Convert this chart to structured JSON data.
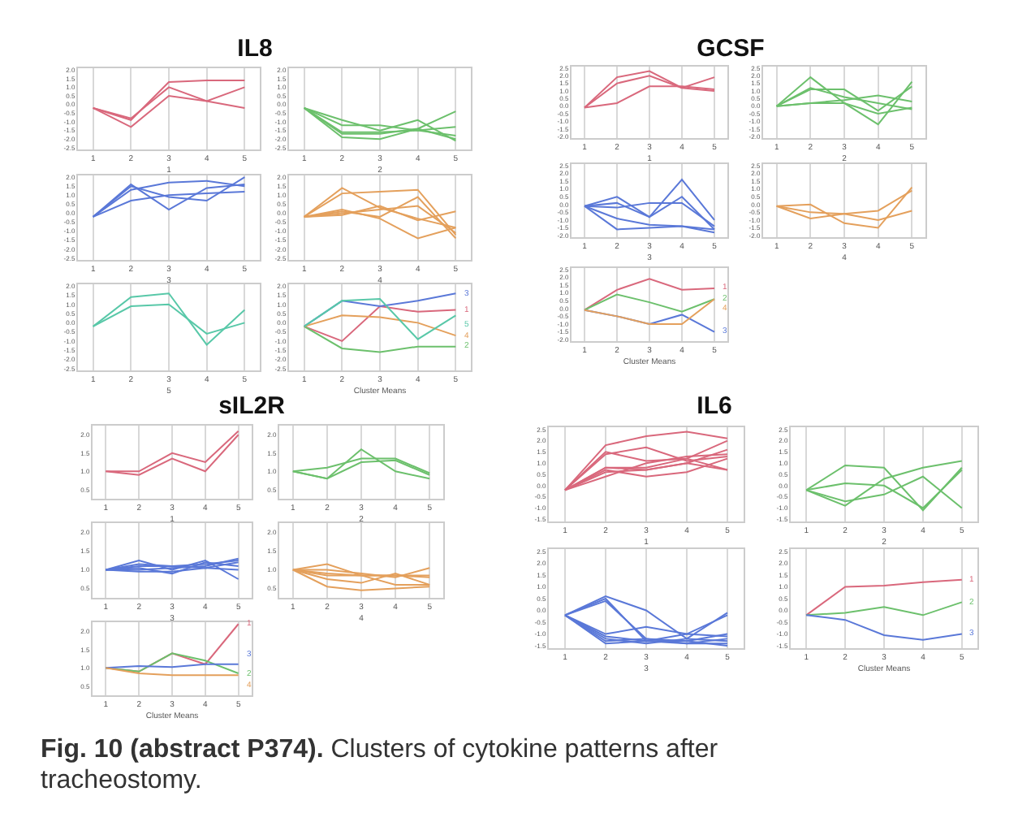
{
  "chart_data": [
    {
      "type": "line",
      "title": "IL8",
      "xlabel": "1",
      "categories": [
        "1",
        "2",
        "3",
        "4",
        "5"
      ],
      "ylim": [
        -2.6,
        2.1
      ],
      "yticks": [
        {
          "value": 2,
          "label": "2.0"
        },
        1.5,
        {
          "value": 1,
          "label": "1.0"
        },
        0.5,
        {
          "value": 0,
          "label": "0.0"
        },
        -0.5,
        {
          "value": -1,
          "label": "-1.0"
        },
        -1.5,
        {
          "value": -2,
          "label": "-2.0"
        },
        -2.5
      ],
      "grid": "x",
      "legend": false,
      "series": [
        {
          "color": "#d9687c",
          "values": [
            -0.2,
            -0.9,
            1.3,
            1.4,
            1.4
          ]
        },
        {
          "color": "#d9687c",
          "values": [
            -0.2,
            -0.8,
            1.0,
            0.2,
            1.0
          ]
        },
        {
          "color": "#d9687c",
          "values": [
            -0.2,
            -1.3,
            0.5,
            0.2,
            -0.2
          ]
        }
      ]
    },
    {
      "type": "line",
      "xlabel": "2",
      "categories": [
        "1",
        "2",
        "3",
        "4",
        "5"
      ],
      "ylim": [
        -2.6,
        2.1
      ],
      "yticks": [
        {
          "value": 2,
          "label": "2.0"
        },
        1.5,
        {
          "value": 1,
          "label": "1.0"
        },
        0.5,
        {
          "value": 0,
          "label": "0.0"
        },
        -0.5,
        {
          "value": -1,
          "label": "-1.0"
        },
        -1.5,
        {
          "value": -2,
          "label": "-2.0"
        },
        -2.5
      ],
      "grid": "x",
      "legend": false,
      "series": [
        {
          "color": "#6cc06c",
          "values": [
            -0.2,
            -1.2,
            -1.2,
            -1.5,
            -1.3
          ]
        },
        {
          "color": "#6cc06c",
          "values": [
            -0.2,
            -1.6,
            -1.6,
            -1.5,
            -1.8
          ]
        },
        {
          "color": "#6cc06c",
          "values": [
            -0.2,
            -1.9,
            -2.0,
            -1.4,
            -2.0
          ]
        },
        {
          "color": "#6cc06c",
          "values": [
            -0.2,
            -0.9,
            -1.5,
            -0.9,
            -2.1
          ]
        },
        {
          "color": "#6cc06c",
          "values": [
            -0.2,
            -1.7,
            -1.7,
            -1.4,
            -0.4
          ]
        }
      ]
    },
    {
      "type": "line",
      "xlabel": "3",
      "categories": [
        "1",
        "2",
        "3",
        "4",
        "5"
      ],
      "ylim": [
        -2.6,
        2.1
      ],
      "yticks": [
        {
          "value": 2,
          "label": "2.0"
        },
        1.5,
        {
          "value": 1,
          "label": "1.0"
        },
        0.5,
        {
          "value": 0,
          "label": "0.0"
        },
        -0.5,
        {
          "value": -1,
          "label": "-1.0"
        },
        -1.5,
        {
          "value": -2,
          "label": "-2.0"
        },
        -2.5
      ],
      "grid": "x",
      "legend": false,
      "series": [
        {
          "color": "#5a78d8",
          "values": [
            -0.2,
            1.6,
            0.2,
            1.4,
            1.6
          ]
        },
        {
          "color": "#5a78d8",
          "values": [
            -0.2,
            1.3,
            1.7,
            1.8,
            1.5
          ]
        },
        {
          "color": "#5a78d8",
          "values": [
            -0.2,
            1.5,
            0.9,
            0.7,
            2.0
          ]
        },
        {
          "color": "#5a78d8",
          "values": [
            -0.2,
            0.7,
            1.0,
            1.1,
            1.2
          ]
        }
      ]
    },
    {
      "type": "line",
      "xlabel": "4",
      "categories": [
        "1",
        "2",
        "3",
        "4",
        "5"
      ],
      "ylim": [
        -2.6,
        2.1
      ],
      "yticks": [
        {
          "value": 2,
          "label": "2.0"
        },
        1.5,
        {
          "value": 1,
          "label": "1.0"
        },
        0.5,
        {
          "value": 0,
          "label": "0.0"
        },
        -0.5,
        {
          "value": -1,
          "label": "-1.0"
        },
        -1.5,
        {
          "value": -2,
          "label": "-2.0"
        },
        -2.5
      ],
      "grid": "x",
      "legend": false,
      "series": [
        {
          "color": "#e4a05c",
          "values": [
            -0.2,
            1.4,
            0.3,
            -0.3,
            -0.8
          ]
        },
        {
          "color": "#e4a05c",
          "values": [
            -0.2,
            1.1,
            1.2,
            1.3,
            -1.2
          ]
        },
        {
          "color": "#e4a05c",
          "values": [
            -0.2,
            0.1,
            -0.2,
            0.9,
            -1.4
          ]
        },
        {
          "color": "#e4a05c",
          "values": [
            -0.2,
            0.2,
            -0.3,
            -1.4,
            -0.8
          ]
        },
        {
          "color": "#e4a05c",
          "values": [
            -0.2,
            -0.1,
            0.4,
            -0.4,
            0.1
          ]
        },
        {
          "color": "#e4a05c",
          "values": [
            -0.2,
            0.0,
            0.2,
            0.4,
            -1.1
          ]
        }
      ]
    },
    {
      "type": "line",
      "xlabel": "5",
      "categories": [
        "1",
        "2",
        "3",
        "4",
        "5"
      ],
      "ylim": [
        -2.6,
        2.1
      ],
      "yticks": [
        {
          "value": 2,
          "label": "2.0"
        },
        1.5,
        {
          "value": 1,
          "label": "1.0"
        },
        0.5,
        {
          "value": 0,
          "label": "0.0"
        },
        -0.5,
        {
          "value": -1,
          "label": "-1.0"
        },
        -1.5,
        {
          "value": -2,
          "label": "-2.0"
        },
        -2.5
      ],
      "grid": "x",
      "legend": false,
      "series": [
        {
          "color": "#58c8a8",
          "values": [
            -0.2,
            1.4,
            1.6,
            -1.2,
            0.7
          ]
        },
        {
          "color": "#58c8a8",
          "values": [
            -0.2,
            0.9,
            1.0,
            -0.6,
            0.0
          ]
        }
      ]
    },
    {
      "type": "line",
      "xlabel": "Cluster Means",
      "categories": [
        "1",
        "2",
        "3",
        "4",
        "5"
      ],
      "ylim": [
        -2.6,
        2.1
      ],
      "yticks": [
        {
          "value": 2,
          "label": "2.0"
        },
        1.5,
        {
          "value": 1,
          "label": "1.0"
        },
        0.5,
        {
          "value": 0,
          "label": "0.0"
        },
        -0.5,
        {
          "value": -1,
          "label": "-1.0"
        },
        -1.5,
        {
          "value": -2,
          "label": "-2.0"
        },
        -2.5
      ],
      "grid": "x",
      "legend": false,
      "series": [
        {
          "name": "1",
          "color": "#d9687c",
          "values": [
            -0.2,
            -1.0,
            0.9,
            0.6,
            0.7
          ]
        },
        {
          "name": "2",
          "color": "#6cc06c",
          "values": [
            -0.2,
            -1.4,
            -1.6,
            -1.3,
            -1.3
          ]
        },
        {
          "name": "3",
          "color": "#5a78d8",
          "values": [
            -0.2,
            1.2,
            0.9,
            1.2,
            1.6
          ]
        },
        {
          "name": "4",
          "color": "#e4a05c",
          "values": [
            -0.2,
            0.4,
            0.3,
            0.0,
            -0.7
          ]
        },
        {
          "name": "5",
          "color": "#58c8a8",
          "values": [
            -0.2,
            1.2,
            1.3,
            -0.9,
            0.4
          ]
        }
      ]
    },
    {
      "type": "line",
      "title": "GCSF",
      "xlabel": "1",
      "categories": [
        "1",
        "2",
        "3",
        "4",
        "5"
      ],
      "ylim": [
        -2.1,
        2.6
      ],
      "yticks": [
        2.5,
        {
          "value": 2,
          "label": "2.0"
        },
        1.5,
        {
          "value": 1,
          "label": "1.0"
        },
        0.5,
        {
          "value": 0,
          "label": "0.0"
        },
        -0.5,
        {
          "value": -1,
          "label": "-1.0"
        },
        -1.5,
        {
          "value": -2,
          "label": "-2.0"
        }
      ],
      "grid": "x",
      "legend": false,
      "series": [
        {
          "color": "#d9687c",
          "values": [
            -0.1,
            1.9,
            2.3,
            1.2,
            1.9
          ]
        },
        {
          "color": "#d9687c",
          "values": [
            -0.1,
            1.5,
            2.0,
            1.2,
            1.0
          ]
        },
        {
          "color": "#d9687c",
          "values": [
            -0.1,
            0.2,
            1.3,
            1.3,
            1.1
          ]
        }
      ]
    },
    {
      "type": "line",
      "xlabel": "2",
      "categories": [
        "1",
        "2",
        "3",
        "4",
        "5"
      ],
      "ylim": [
        -2.1,
        2.6
      ],
      "yticks": [
        2.5,
        {
          "value": 2,
          "label": "2.0"
        },
        1.5,
        {
          "value": 1,
          "label": "1.0"
        },
        0.5,
        {
          "value": 0,
          "label": "0.0"
        },
        -0.5,
        {
          "value": -1,
          "label": "-1.0"
        },
        -1.5,
        {
          "value": -2,
          "label": "-2.0"
        }
      ],
      "grid": "x",
      "legend": false,
      "series": [
        {
          "color": "#6cc06c",
          "values": [
            0.0,
            1.9,
            0.2,
            -1.2,
            1.6
          ]
        },
        {
          "color": "#6cc06c",
          "values": [
            0.0,
            1.1,
            1.1,
            -0.3,
            1.3
          ]
        },
        {
          "color": "#6cc06c",
          "values": [
            0.0,
            0.2,
            0.4,
            0.7,
            0.3
          ]
        },
        {
          "color": "#6cc06c",
          "values": [
            0.0,
            1.2,
            0.6,
            0.2,
            -0.2
          ]
        },
        {
          "color": "#6cc06c",
          "values": [
            0.0,
            0.2,
            0.2,
            -0.5,
            -0.1
          ]
        }
      ]
    },
    {
      "type": "line",
      "xlabel": "3",
      "categories": [
        "1",
        "2",
        "3",
        "4",
        "5"
      ],
      "ylim": [
        -2.1,
        2.6
      ],
      "yticks": [
        2.5,
        {
          "value": 2,
          "label": "2.0"
        },
        1.5,
        {
          "value": 1,
          "label": "1.0"
        },
        0.5,
        {
          "value": 0,
          "label": "0.0"
        },
        -0.5,
        {
          "value": -1,
          "label": "-1.0"
        },
        -1.5,
        {
          "value": -2,
          "label": "-2.0"
        }
      ],
      "grid": "x",
      "legend": false,
      "series": [
        {
          "color": "#5a78d8",
          "values": [
            -0.1,
            0.5,
            -0.8,
            1.6,
            -1.0
          ]
        },
        {
          "color": "#5a78d8",
          "values": [
            -0.1,
            0.1,
            -0.8,
            0.5,
            -1.6
          ]
        },
        {
          "color": "#5a78d8",
          "values": [
            -0.1,
            -0.2,
            0.1,
            0.1,
            -1.4
          ]
        },
        {
          "color": "#5a78d8",
          "values": [
            -0.1,
            -0.9,
            -1.3,
            -1.4,
            -1.6
          ]
        },
        {
          "color": "#5a78d8",
          "values": [
            -0.1,
            -1.6,
            -1.5,
            -1.4,
            -1.8
          ]
        }
      ]
    },
    {
      "type": "line",
      "xlabel": "4",
      "categories": [
        "1",
        "2",
        "3",
        "4",
        "5"
      ],
      "ylim": [
        -2.1,
        2.6
      ],
      "yticks": [
        2.5,
        {
          "value": 2,
          "label": "2.0"
        },
        1.5,
        {
          "value": 1,
          "label": "1.0"
        },
        0.5,
        {
          "value": 0,
          "label": "0.0"
        },
        -0.5,
        {
          "value": -1,
          "label": "-1.0"
        },
        -1.5,
        {
          "value": -2,
          "label": "-2.0"
        }
      ],
      "grid": "x",
      "legend": false,
      "series": [
        {
          "color": "#e4a05c",
          "values": [
            -0.1,
            0.0,
            -1.2,
            -1.5,
            1.1
          ]
        },
        {
          "color": "#e4a05c",
          "values": [
            -0.1,
            -0.9,
            -0.6,
            -0.4,
            0.9
          ]
        },
        {
          "color": "#e4a05c",
          "values": [
            -0.1,
            -0.5,
            -0.6,
            -1.0,
            -0.4
          ]
        }
      ]
    },
    {
      "type": "line",
      "xlabel": "Cluster Means",
      "categories": [
        "1",
        "2",
        "3",
        "4",
        "5"
      ],
      "ylim": [
        -2.1,
        2.6
      ],
      "yticks": [
        2.5,
        {
          "value": 2,
          "label": "2.0"
        },
        1.5,
        {
          "value": 1,
          "label": "1.0"
        },
        0.5,
        {
          "value": 0,
          "label": "0.0"
        },
        -0.5,
        {
          "value": -1,
          "label": "-1.0"
        },
        -1.5,
        {
          "value": -2,
          "label": "-2.0"
        }
      ],
      "grid": "x",
      "legend": false,
      "series": [
        {
          "name": "1",
          "color": "#d9687c",
          "values": [
            -0.1,
            1.2,
            1.9,
            1.2,
            1.3
          ]
        },
        {
          "name": "2",
          "color": "#6cc06c",
          "values": [
            -0.1,
            0.9,
            0.4,
            -0.2,
            0.6
          ]
        },
        {
          "name": "3",
          "color": "#5a78d8",
          "values": [
            -0.1,
            -0.5,
            -1.0,
            -0.4,
            -1.5
          ]
        },
        {
          "name": "4",
          "color": "#e4a05c",
          "values": [
            -0.1,
            -0.5,
            -1.0,
            -1.0,
            0.6
          ]
        }
      ]
    },
    {
      "type": "line",
      "title": "sIL2R",
      "xlabel": "1",
      "categories": [
        "1",
        "2",
        "3",
        "4",
        "5"
      ],
      "ylim": [
        0.25,
        2.25
      ],
      "yticks": [
        {
          "value": 2,
          "label": "2.0"
        },
        1.5,
        {
          "value": 1,
          "label": "1.0"
        },
        0.5
      ],
      "grid": "x",
      "legend": false,
      "series": [
        {
          "color": "#d9687c",
          "values": [
            1.0,
            0.9,
            1.35,
            1.0,
            2.0
          ]
        },
        {
          "color": "#d9687c",
          "values": [
            1.0,
            1.0,
            1.5,
            1.25,
            2.1
          ]
        }
      ]
    },
    {
      "type": "line",
      "xlabel": "2",
      "categories": [
        "1",
        "2",
        "3",
        "4",
        "5"
      ],
      "ylim": [
        0.25,
        2.25
      ],
      "yticks": [
        {
          "value": 2,
          "label": "2.0"
        },
        1.5,
        {
          "value": 1,
          "label": "1.0"
        },
        0.5
      ],
      "grid": "x",
      "legend": false,
      "series": [
        {
          "color": "#6cc06c",
          "values": [
            1.0,
            0.8,
            1.6,
            1.0,
            0.8
          ]
        },
        {
          "color": "#6cc06c",
          "values": [
            1.0,
            1.1,
            1.35,
            1.35,
            0.95
          ]
        },
        {
          "color": "#6cc06c",
          "values": [
            1.0,
            0.8,
            1.25,
            1.3,
            0.9
          ]
        }
      ]
    },
    {
      "type": "line",
      "xlabel": "3",
      "categories": [
        "1",
        "2",
        "3",
        "4",
        "5"
      ],
      "ylim": [
        0.25,
        2.25
      ],
      "yticks": [
        {
          "value": 2,
          "label": "2.0"
        },
        1.5,
        {
          "value": 1,
          "label": "1.0"
        },
        0.5
      ],
      "grid": "x",
      "legend": false,
      "series": [
        {
          "color": "#5a78d8",
          "values": [
            1.0,
            1.25,
            1.0,
            1.25,
            0.75
          ]
        },
        {
          "color": "#5a78d8",
          "values": [
            1.0,
            1.15,
            1.1,
            1.15,
            1.25
          ]
        },
        {
          "color": "#5a78d8",
          "values": [
            1.0,
            1.0,
            1.05,
            1.1,
            1.3
          ]
        },
        {
          "color": "#5a78d8",
          "values": [
            1.0,
            0.95,
            0.95,
            1.05,
            1.0
          ]
        },
        {
          "color": "#5a78d8",
          "values": [
            1.0,
            1.05,
            0.9,
            1.2,
            1.1
          ]
        },
        {
          "color": "#5a78d8",
          "values": [
            1.0,
            1.1,
            1.1,
            1.05,
            1.2
          ]
        }
      ]
    },
    {
      "type": "line",
      "xlabel": "4",
      "categories": [
        "1",
        "2",
        "3",
        "4",
        "5"
      ],
      "ylim": [
        0.25,
        2.25
      ],
      "yticks": [
        {
          "value": 2,
          "label": "2.0"
        },
        1.5,
        {
          "value": 1,
          "label": "1.0"
        },
        0.5
      ],
      "grid": "x",
      "legend": false,
      "series": [
        {
          "color": "#e4a05c",
          "values": [
            1.0,
            1.15,
            0.85,
            0.6,
            0.6
          ]
        },
        {
          "color": "#e4a05c",
          "values": [
            1.0,
            1.0,
            0.9,
            0.8,
            1.05
          ]
        },
        {
          "color": "#e4a05c",
          "values": [
            1.0,
            0.9,
            0.85,
            0.85,
            0.8
          ]
        },
        {
          "color": "#e4a05c",
          "values": [
            1.0,
            0.75,
            0.65,
            0.9,
            0.6
          ]
        },
        {
          "color": "#e4a05c",
          "values": [
            1.0,
            0.55,
            0.45,
            0.5,
            0.55
          ]
        },
        {
          "color": "#e4a05c",
          "values": [
            1.0,
            0.85,
            0.85,
            0.85,
            0.85
          ]
        }
      ]
    },
    {
      "type": "line",
      "xlabel": "Cluster Means",
      "categories": [
        "1",
        "2",
        "3",
        "4",
        "5"
      ],
      "ylim": [
        0.25,
        2.25
      ],
      "yticks": [
        {
          "value": 2,
          "label": "2.0"
        },
        1.5,
        {
          "value": 1,
          "label": "1.0"
        },
        0.5
      ],
      "grid": "x",
      "legend": false,
      "series": [
        {
          "name": "1",
          "color": "#d9687c",
          "values": [
            1.0,
            0.9,
            1.4,
            1.1,
            2.2
          ]
        },
        {
          "name": "2",
          "color": "#6cc06c",
          "values": [
            1.0,
            0.9,
            1.4,
            1.2,
            0.85
          ]
        },
        {
          "name": "3",
          "color": "#5a78d8",
          "values": [
            1.0,
            1.05,
            1.02,
            1.1,
            1.1
          ]
        },
        {
          "name": "4",
          "color": "#e4a05c",
          "values": [
            1.0,
            0.85,
            0.8,
            0.8,
            0.8
          ]
        }
      ]
    },
    {
      "type": "line",
      "title": "IL6",
      "xlabel": "1",
      "categories": [
        "1",
        "2",
        "3",
        "4",
        "5"
      ],
      "ylim": [
        -1.6,
        2.6
      ],
      "yticks": [
        2.5,
        {
          "value": 2,
          "label": "2.0"
        },
        1.5,
        {
          "value": 1,
          "label": "1.0"
        },
        0.5,
        {
          "value": 0,
          "label": "0.0"
        },
        -0.5,
        {
          "value": -1,
          "label": "-1.0"
        },
        -1.5
      ],
      "grid": "x",
      "legend": false,
      "series": [
        {
          "color": "#d9687c",
          "values": [
            -0.2,
            1.8,
            2.2,
            2.4,
            2.1
          ]
        },
        {
          "color": "#d9687c",
          "values": [
            -0.2,
            1.5,
            1.1,
            1.2,
            0.7
          ]
        },
        {
          "color": "#d9687c",
          "values": [
            -0.2,
            1.4,
            1.7,
            1.1,
            1.3
          ]
        },
        {
          "color": "#d9687c",
          "values": [
            -0.2,
            0.8,
            0.8,
            1.2,
            2.0
          ]
        },
        {
          "color": "#d9687c",
          "values": [
            -0.2,
            0.6,
            0.7,
            1.0,
            1.6
          ]
        },
        {
          "color": "#d9687c",
          "values": [
            -0.2,
            0.4,
            1.0,
            1.3,
            1.4
          ]
        },
        {
          "color": "#d9687c",
          "values": [
            -0.2,
            0.7,
            0.4,
            0.6,
            1.2
          ]
        },
        {
          "color": "#d9687c",
          "values": [
            -0.2,
            0.8,
            0.7,
            1.0,
            0.7
          ]
        }
      ]
    },
    {
      "type": "line",
      "xlabel": "2",
      "categories": [
        "1",
        "2",
        "3",
        "4",
        "5"
      ],
      "ylim": [
        -1.6,
        2.6
      ],
      "yticks": [
        2.5,
        {
          "value": 2,
          "label": "2.0"
        },
        1.5,
        {
          "value": 1,
          "label": "1.0"
        },
        0.5,
        {
          "value": 0,
          "label": "0.0"
        },
        -0.5,
        {
          "value": -1,
          "label": "-1.0"
        },
        -1.5
      ],
      "grid": "x",
      "legend": false,
      "series": [
        {
          "color": "#6cc06c",
          "values": [
            -0.2,
            0.9,
            0.8,
            -1.1,
            0.8
          ]
        },
        {
          "color": "#6cc06c",
          "values": [
            -0.2,
            0.1,
            0.0,
            -1.0,
            0.7
          ]
        },
        {
          "color": "#6cc06c",
          "values": [
            -0.2,
            -0.9,
            0.3,
            0.8,
            1.1
          ]
        },
        {
          "color": "#6cc06c",
          "values": [
            -0.2,
            -0.7,
            -0.4,
            0.4,
            -1.0
          ]
        }
      ]
    },
    {
      "type": "line",
      "xlabel": "3",
      "categories": [
        "1",
        "2",
        "3",
        "4",
        "5"
      ],
      "ylim": [
        -1.6,
        2.6
      ],
      "yticks": [
        2.5,
        {
          "value": 2,
          "label": "2.0"
        },
        1.5,
        {
          "value": 1,
          "label": "1.0"
        },
        0.5,
        {
          "value": 0,
          "label": "0.0"
        },
        -0.5,
        {
          "value": -1,
          "label": "-1.0"
        },
        -1.5
      ],
      "grid": "x",
      "legend": false,
      "series": [
        {
          "color": "#5a78d8",
          "values": [
            -0.2,
            0.6,
            0.0,
            -1.2,
            -0.1
          ]
        },
        {
          "color": "#5a78d8",
          "values": [
            -0.2,
            0.5,
            -1.3,
            -1.3,
            -1.0
          ]
        },
        {
          "color": "#5a78d8",
          "values": [
            -0.2,
            -1.0,
            -0.7,
            -1.0,
            -0.2
          ]
        },
        {
          "color": "#5a78d8",
          "values": [
            -0.2,
            -1.1,
            -1.3,
            -1.0,
            -1.1
          ]
        },
        {
          "color": "#5a78d8",
          "values": [
            -0.2,
            -1.4,
            -1.3,
            -1.4,
            -1.4
          ]
        },
        {
          "color": "#5a78d8",
          "values": [
            -0.2,
            -1.3,
            -1.2,
            -1.3,
            -1.5
          ]
        },
        {
          "color": "#5a78d8",
          "values": [
            -0.2,
            0.4,
            -1.2,
            -1.4,
            -1.2
          ]
        },
        {
          "color": "#5a78d8",
          "values": [
            -0.2,
            -1.2,
            -1.4,
            -1.2,
            -1.3
          ]
        }
      ]
    },
    {
      "type": "line",
      "xlabel": "Cluster Means",
      "categories": [
        "1",
        "2",
        "3",
        "4",
        "5"
      ],
      "ylim": [
        -1.6,
        2.6
      ],
      "yticks": [
        2.5,
        {
          "value": 2,
          "label": "2.0"
        },
        1.5,
        {
          "value": 1,
          "label": "1.0"
        },
        0.5,
        {
          "value": 0,
          "label": "0.0"
        },
        -0.5,
        {
          "value": -1,
          "label": "-1.0"
        },
        -1.5
      ],
      "grid": "x",
      "legend": false,
      "annotations": [
        "Fig. 10 (abstract P374). Clusters of cytokine patterns after tracheostomy."
      ],
      "series": [
        {
          "name": "1",
          "color": "#d9687c",
          "values": [
            -0.2,
            1.0,
            1.05,
            1.2,
            1.3
          ]
        },
        {
          "name": "2",
          "color": "#6cc06c",
          "values": [
            -0.2,
            -0.1,
            0.15,
            -0.2,
            0.35
          ]
        },
        {
          "name": "3",
          "color": "#5a78d8",
          "values": [
            -0.2,
            -0.4,
            -1.05,
            -1.25,
            -1.0
          ]
        }
      ]
    }
  ]
}
